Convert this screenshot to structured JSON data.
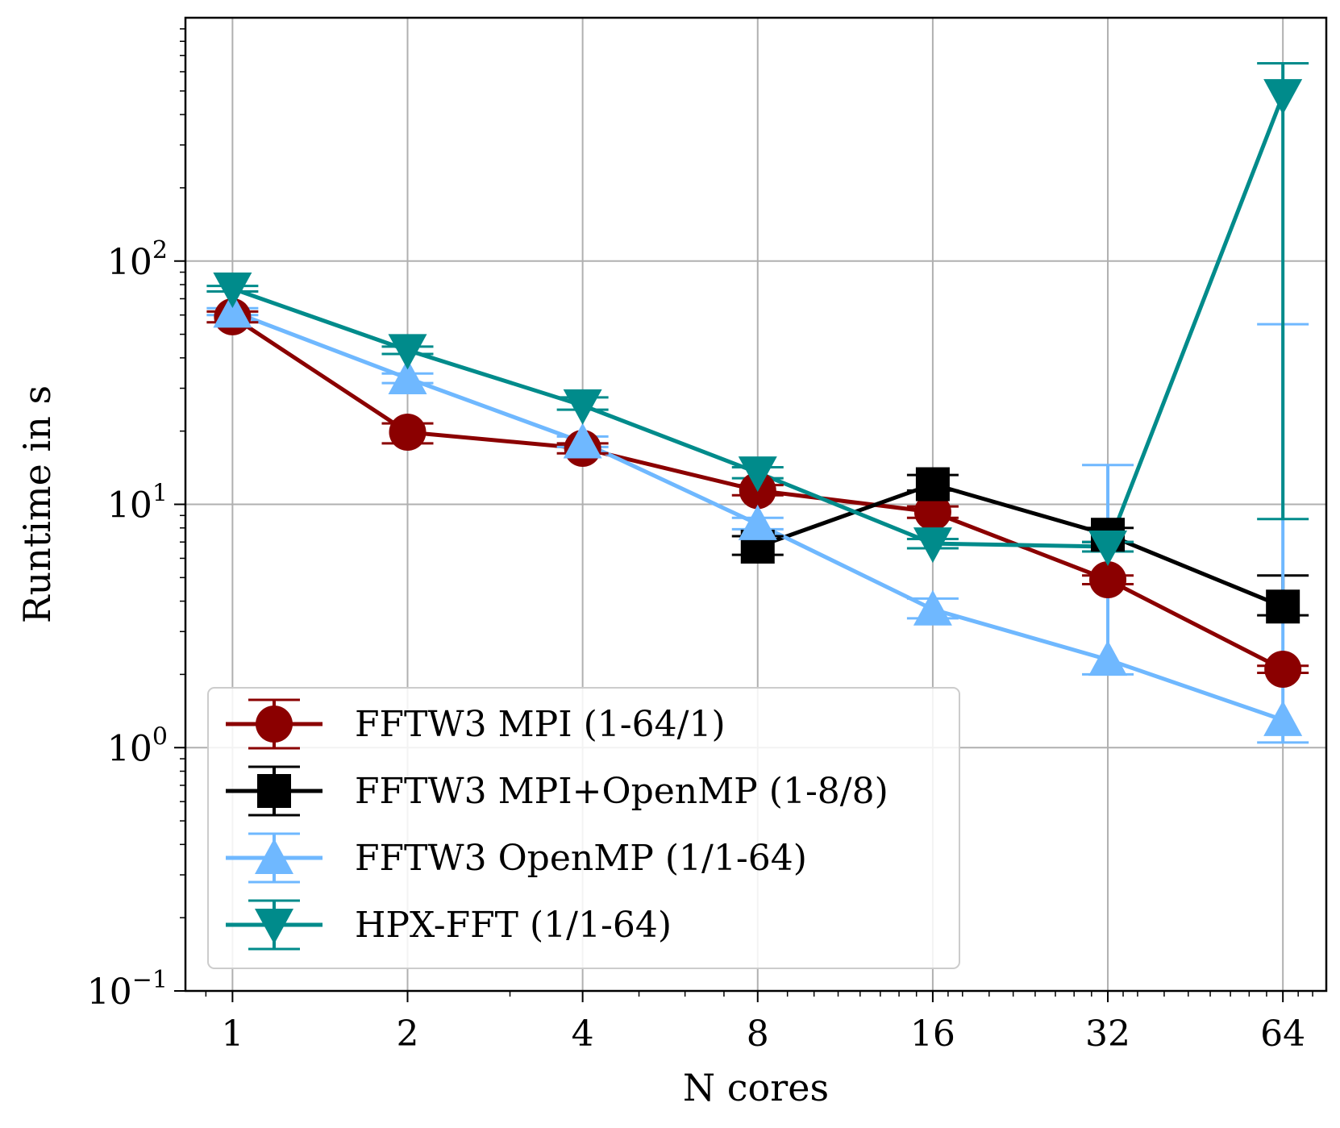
{
  "chart_data": {
    "type": "line",
    "title": "",
    "xlabel": "N cores",
    "ylabel": "Runtime in s",
    "xscale": "log2",
    "yscale": "log10",
    "x": [
      1,
      2,
      4,
      8,
      16,
      32,
      64
    ],
    "x_tick_labels": [
      "1",
      "2",
      "4",
      "8",
      "16",
      "32",
      "64"
    ],
    "xlim": [
      0.83,
      76
    ],
    "ylim": [
      0.1,
      1000
    ],
    "y_ticks": [
      {
        "value": 0.1,
        "base": "10",
        "exp": "−1"
      },
      {
        "value": 1,
        "base": "10",
        "exp": "0"
      },
      {
        "value": 10,
        "base": "10",
        "exp": "1"
      },
      {
        "value": 100,
        "base": "10",
        "exp": "2"
      }
    ],
    "grid": true,
    "legend_position": "lower-left",
    "series": [
      {
        "name": "FFTW3 MPI (1-64/1)",
        "color": "#8b0000",
        "marker": "circle",
        "x": [
          1,
          2,
          4,
          8,
          16,
          32,
          64
        ],
        "y": [
          59,
          19.8,
          17,
          11.4,
          9.3,
          4.9,
          2.1
        ],
        "err_low": [
          56,
          17.8,
          16.2,
          10.9,
          8.8,
          4.7,
          2.03
        ],
        "err_high": [
          62,
          21.5,
          17.8,
          12,
          9.8,
          5.1,
          2.17
        ]
      },
      {
        "name": "FFTW3 MPI+OpenMP (1-8/8)",
        "color": "#000000",
        "marker": "square",
        "x": [
          8,
          16,
          32,
          64
        ],
        "y": [
          6.7,
          12.1,
          7.5,
          3.8
        ],
        "err_low": [
          6.2,
          11.4,
          7.0,
          3.5
        ],
        "err_high": [
          7.4,
          13.2,
          8.0,
          5.1
        ]
      },
      {
        "name": "FFTW3 OpenMP (1/1-64)",
        "color": "#6fb8ff",
        "marker": "triangle-up",
        "x": [
          1,
          2,
          4,
          8,
          16,
          32,
          64
        ],
        "y": [
          62,
          33,
          18,
          8.3,
          3.7,
          2.3,
          1.3
        ],
        "err_low": [
          60,
          31.5,
          17.2,
          7.9,
          3.4,
          2.0,
          1.05
        ],
        "err_high": [
          64,
          34.5,
          19,
          8.8,
          4.1,
          14.5,
          55
        ]
      },
      {
        "name": "HPX-FFT (1/1-64)",
        "color": "#008b8b",
        "marker": "triangle-down",
        "x": [
          1,
          2,
          4,
          8,
          16,
          32,
          64
        ],
        "y": [
          77,
          43,
          25.5,
          13.5,
          6.9,
          6.7,
          480
        ],
        "err_low": [
          75,
          41.5,
          24.5,
          12.8,
          6.6,
          6.4,
          8.7
        ],
        "err_high": [
          79,
          44.5,
          27.5,
          14.2,
          7.2,
          7.0,
          650
        ]
      }
    ]
  }
}
